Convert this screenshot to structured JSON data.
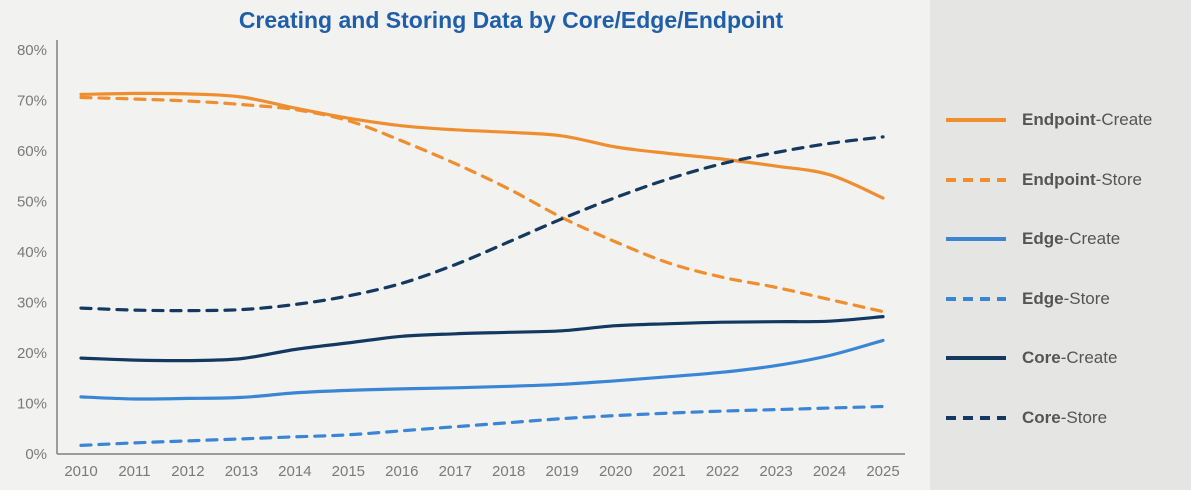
{
  "chart_data": {
    "type": "line",
    "title": "Creating and Storing Data by Core/Edge/Endpoint",
    "xlabel": "",
    "ylabel": "",
    "x": [
      "2010",
      "2011",
      "2012",
      "2013",
      "2014",
      "2015",
      "2016",
      "2017",
      "2018",
      "2019",
      "2020",
      "2021",
      "2022",
      "2023",
      "2024",
      "2025"
    ],
    "ylim": [
      0,
      80
    ],
    "yticks": [
      "0%",
      "10%",
      "20%",
      "30%",
      "40%",
      "50%",
      "60%",
      "70%",
      "80%"
    ],
    "grid": false,
    "legend_position": "right",
    "series": [
      {
        "name": "Endpoint-Create",
        "name_bold": "Endpoint",
        "name_rest": "-Create",
        "color": "#ef8e2f",
        "dash": false,
        "values": [
          71.2,
          71.4,
          71.3,
          70.7,
          68.5,
          66.5,
          65.0,
          64.2,
          63.7,
          63.0,
          60.8,
          59.5,
          58.4,
          57.0,
          55.3,
          50.7
        ]
      },
      {
        "name": "Endpoint-Store",
        "name_bold": "Endpoint",
        "name_rest": "-Store",
        "color": "#ef8e2f",
        "dash": true,
        "values": [
          70.6,
          70.3,
          69.9,
          69.2,
          68.2,
          66.0,
          62.0,
          57.5,
          52.5,
          46.8,
          42.0,
          37.8,
          35.0,
          33.0,
          30.6,
          28.2
        ]
      },
      {
        "name": "Edge-Create",
        "name_bold": "Edge",
        "name_rest": "-Create",
        "color": "#3a86d4",
        "dash": false,
        "values": [
          11.3,
          10.9,
          11.0,
          11.2,
          12.1,
          12.6,
          12.9,
          13.1,
          13.4,
          13.8,
          14.5,
          15.3,
          16.2,
          17.5,
          19.5,
          22.5
        ]
      },
      {
        "name": "Edge-Store",
        "name_bold": "Edge",
        "name_rest": "-Store",
        "color": "#3a86d4",
        "dash": true,
        "values": [
          1.7,
          2.2,
          2.6,
          3.0,
          3.4,
          3.8,
          4.6,
          5.4,
          6.2,
          7.0,
          7.6,
          8.1,
          8.5,
          8.8,
          9.1,
          9.4
        ]
      },
      {
        "name": "Core-Create",
        "name_bold": "Core",
        "name_rest": "-Create",
        "color": "#143961",
        "dash": false,
        "values": [
          19.0,
          18.6,
          18.5,
          18.9,
          20.7,
          22.0,
          23.3,
          23.8,
          24.1,
          24.4,
          25.4,
          25.8,
          26.1,
          26.2,
          26.3,
          27.2
        ]
      },
      {
        "name": "Core-Store",
        "name_bold": "Core",
        "name_rest": "-Store",
        "color": "#143961",
        "dash": true,
        "values": [
          28.9,
          28.5,
          28.4,
          28.6,
          29.6,
          31.3,
          33.8,
          37.5,
          42.0,
          46.6,
          50.8,
          54.5,
          57.5,
          59.7,
          61.5,
          62.8
        ]
      }
    ]
  }
}
